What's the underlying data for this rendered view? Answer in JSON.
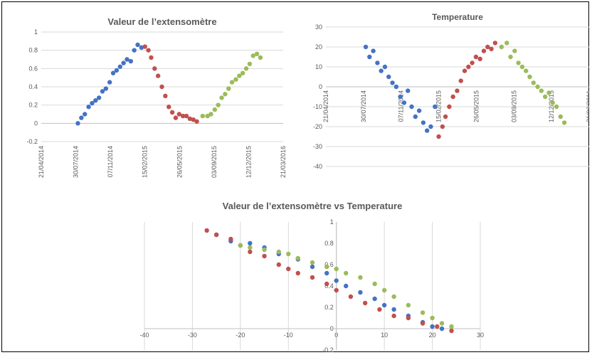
{
  "colors": {
    "series1": "#4472c4",
    "series2": "#c0504d",
    "series3": "#9bbb59"
  },
  "chart_data": [
    {
      "type": "scatter",
      "title": "Valeur de l’extensomètre",
      "xlim": [
        "2014-04-21",
        "2016-03-21"
      ],
      "ylim": [
        -0.2,
        1
      ],
      "x_ticks": [
        "21/04/2014",
        "30/07/2014",
        "07/11/2014",
        "15/02/2015",
        "26/05/2015",
        "03/09/2015",
        "12/12/2015",
        "21/03/2016"
      ],
      "y_ticks": [
        "-0.2",
        "0",
        "0.2",
        "0.4",
        "0.6",
        "0.8",
        "1"
      ],
      "series": [
        {
          "color": "#4472c4",
          "points": [
            [
              "2014-08-05",
              0.0
            ],
            [
              "2014-08-15",
              0.06
            ],
            [
              "2014-08-25",
              0.1
            ],
            [
              "2014-09-05",
              0.18
            ],
            [
              "2014-09-15",
              0.22
            ],
            [
              "2014-09-25",
              0.25
            ],
            [
              "2014-10-05",
              0.28
            ],
            [
              "2014-10-15",
              0.35
            ],
            [
              "2014-10-25",
              0.38
            ],
            [
              "2014-11-05",
              0.45
            ],
            [
              "2014-11-15",
              0.55
            ],
            [
              "2014-11-25",
              0.58
            ],
            [
              "2014-12-05",
              0.62
            ],
            [
              "2014-12-15",
              0.66
            ],
            [
              "2014-12-25",
              0.7
            ],
            [
              "2015-01-05",
              0.68
            ],
            [
              "2015-01-15",
              0.8
            ],
            [
              "2015-01-25",
              0.86
            ],
            [
              "2015-02-05",
              0.83
            ]
          ]
        },
        {
          "color": "#c0504d",
          "points": [
            [
              "2015-02-15",
              0.84
            ],
            [
              "2015-02-25",
              0.8
            ],
            [
              "2015-03-05",
              0.72
            ],
            [
              "2015-03-15",
              0.6
            ],
            [
              "2015-03-25",
              0.52
            ],
            [
              "2015-04-05",
              0.4
            ],
            [
              "2015-04-15",
              0.3
            ],
            [
              "2015-04-25",
              0.18
            ],
            [
              "2015-05-05",
              0.12
            ],
            [
              "2015-05-15",
              0.06
            ],
            [
              "2015-05-25",
              0.1
            ],
            [
              "2015-06-05",
              0.08
            ],
            [
              "2015-06-15",
              0.08
            ],
            [
              "2015-06-25",
              0.05
            ],
            [
              "2015-07-05",
              0.04
            ],
            [
              "2015-07-15",
              0.02
            ]
          ]
        },
        {
          "color": "#9bbb59",
          "points": [
            [
              "2015-08-01",
              0.08
            ],
            [
              "2015-08-15",
              0.08
            ],
            [
              "2015-08-25",
              0.1
            ],
            [
              "2015-09-05",
              0.15
            ],
            [
              "2015-09-15",
              0.2
            ],
            [
              "2015-09-25",
              0.28
            ],
            [
              "2015-10-05",
              0.32
            ],
            [
              "2015-10-15",
              0.38
            ],
            [
              "2015-10-25",
              0.45
            ],
            [
              "2015-11-05",
              0.48
            ],
            [
              "2015-11-15",
              0.52
            ],
            [
              "2015-11-25",
              0.55
            ],
            [
              "2015-12-05",
              0.6
            ],
            [
              "2015-12-15",
              0.65
            ],
            [
              "2015-12-25",
              0.74
            ],
            [
              "2016-01-05",
              0.76
            ],
            [
              "2016-01-15",
              0.72
            ]
          ]
        }
      ]
    },
    {
      "type": "scatter",
      "title": "Temperature",
      "xlim": [
        "2014-04-21",
        "2016-03-21"
      ],
      "ylim": [
        -40,
        30
      ],
      "x_ticks": [
        "21/04/2014",
        "30/07/2014",
        "07/11/2014",
        "15/02/2015",
        "26/05/2015",
        "03/09/2015",
        "12/12/2015",
        "21/03/2016"
      ],
      "y_ticks": [
        "-40",
        "-30",
        "-20",
        "-10",
        "0",
        "10",
        "20",
        "30"
      ],
      "series": [
        {
          "color": "#4472c4",
          "points": [
            [
              "2014-08-05",
              20
            ],
            [
              "2014-08-15",
              15
            ],
            [
              "2014-08-25",
              18
            ],
            [
              "2014-09-05",
              12
            ],
            [
              "2014-09-15",
              8
            ],
            [
              "2014-09-25",
              10
            ],
            [
              "2014-10-05",
              5
            ],
            [
              "2014-10-15",
              2
            ],
            [
              "2014-10-25",
              0
            ],
            [
              "2014-11-05",
              -5
            ],
            [
              "2014-11-15",
              -8
            ],
            [
              "2014-11-25",
              -2
            ],
            [
              "2014-12-05",
              -10
            ],
            [
              "2014-12-15",
              -15
            ],
            [
              "2014-12-25",
              -12
            ],
            [
              "2015-01-05",
              -18
            ],
            [
              "2015-01-15",
              -22
            ],
            [
              "2015-01-25",
              -20
            ],
            [
              "2015-02-05",
              -10
            ]
          ]
        },
        {
          "color": "#c0504d",
          "points": [
            [
              "2015-02-15",
              -25
            ],
            [
              "2015-02-25",
              -20
            ],
            [
              "2015-03-05",
              -15
            ],
            [
              "2015-03-15",
              -10
            ],
            [
              "2015-03-25",
              -5
            ],
            [
              "2015-04-05",
              -2
            ],
            [
              "2015-04-15",
              3
            ],
            [
              "2015-04-25",
              8
            ],
            [
              "2015-05-05",
              10
            ],
            [
              "2015-05-15",
              12
            ],
            [
              "2015-05-25",
              15
            ],
            [
              "2015-06-05",
              14
            ],
            [
              "2015-06-15",
              18
            ],
            [
              "2015-06-25",
              20
            ],
            [
              "2015-07-05",
              19
            ],
            [
              "2015-07-15",
              22
            ]
          ]
        },
        {
          "color": "#9bbb59",
          "points": [
            [
              "2015-08-01",
              20
            ],
            [
              "2015-08-15",
              22
            ],
            [
              "2015-08-25",
              15
            ],
            [
              "2015-09-05",
              18
            ],
            [
              "2015-09-15",
              12
            ],
            [
              "2015-09-25",
              10
            ],
            [
              "2015-10-05",
              8
            ],
            [
              "2015-10-15",
              5
            ],
            [
              "2015-10-25",
              2
            ],
            [
              "2015-11-05",
              0
            ],
            [
              "2015-11-15",
              -2
            ],
            [
              "2015-11-25",
              -5
            ],
            [
              "2015-12-05",
              -3
            ],
            [
              "2015-12-15",
              -8
            ],
            [
              "2015-12-25",
              -10
            ],
            [
              "2016-01-05",
              -15
            ],
            [
              "2016-01-15",
              -18
            ]
          ]
        }
      ]
    },
    {
      "type": "scatter",
      "title": "Valeur de l’extensomètre vs Temperature",
      "xlim": [
        -40,
        30
      ],
      "ylim": [
        -0.2,
        1
      ],
      "x_ticks": [
        "-40",
        "-30",
        "-20",
        "-10",
        "0",
        "10",
        "20",
        "30"
      ],
      "y_ticks": [
        "-0.2",
        "0",
        "0.2",
        "0.4",
        "0.6",
        "0.8",
        "1"
      ],
      "series": [
        {
          "color": "#4472c4",
          "points": [
            [
              -25,
              0.88
            ],
            [
              -22,
              0.82
            ],
            [
              -18,
              0.8
            ],
            [
              -15,
              0.76
            ],
            [
              -12,
              0.7
            ],
            [
              -8,
              0.65
            ],
            [
              -5,
              0.58
            ],
            [
              -2,
              0.52
            ],
            [
              0,
              0.45
            ],
            [
              2,
              0.4
            ],
            [
              5,
              0.34
            ],
            [
              8,
              0.28
            ],
            [
              10,
              0.22
            ],
            [
              12,
              0.18
            ],
            [
              15,
              0.12
            ],
            [
              18,
              0.06
            ],
            [
              20,
              0.02
            ],
            [
              22,
              0.0
            ]
          ]
        },
        {
          "color": "#c0504d",
          "points": [
            [
              -27,
              0.92
            ],
            [
              -25,
              0.88
            ],
            [
              -22,
              0.84
            ],
            [
              -20,
              0.78
            ],
            [
              -18,
              0.72
            ],
            [
              -15,
              0.68
            ],
            [
              -12,
              0.6
            ],
            [
              -10,
              0.56
            ],
            [
              -8,
              0.52
            ],
            [
              -5,
              0.48
            ],
            [
              -2,
              0.42
            ],
            [
              0,
              0.36
            ],
            [
              3,
              0.3
            ],
            [
              6,
              0.24
            ],
            [
              9,
              0.18
            ],
            [
              12,
              0.12
            ],
            [
              15,
              0.1
            ],
            [
              18,
              0.05
            ],
            [
              21,
              0.02
            ],
            [
              24,
              -0.02
            ]
          ]
        },
        {
          "color": "#9bbb59",
          "points": [
            [
              -20,
              0.78
            ],
            [
              -18,
              0.76
            ],
            [
              -15,
              0.74
            ],
            [
              -12,
              0.72
            ],
            [
              -10,
              0.7
            ],
            [
              -8,
              0.66
            ],
            [
              -5,
              0.62
            ],
            [
              -2,
              0.58
            ],
            [
              0,
              0.56
            ],
            [
              2,
              0.52
            ],
            [
              5,
              0.48
            ],
            [
              8,
              0.42
            ],
            [
              10,
              0.36
            ],
            [
              12,
              0.3
            ],
            [
              15,
              0.22
            ],
            [
              18,
              0.15
            ],
            [
              20,
              0.1
            ],
            [
              22,
              0.05
            ],
            [
              24,
              0.02
            ]
          ]
        }
      ]
    }
  ]
}
